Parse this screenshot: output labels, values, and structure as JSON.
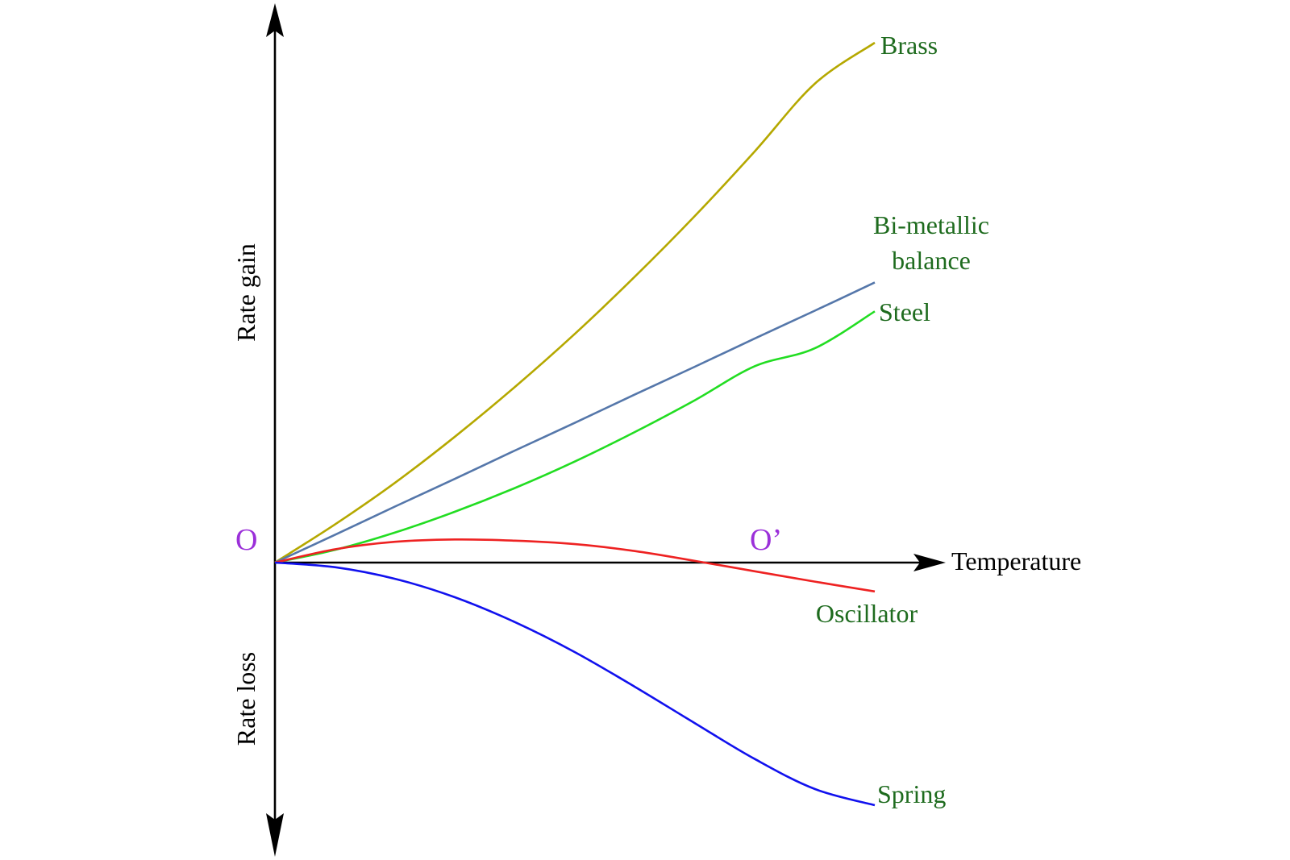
{
  "chart_data": {
    "type": "line",
    "title": "",
    "xlabel": "Temperature",
    "ylabel_positive": "Rate gain",
    "ylabel_negative": "Rate loss",
    "xlim": [
      0,
      10
    ],
    "ylim": [
      -4.6,
      9.4
    ],
    "grid": false,
    "legend": "none",
    "origin_label": "O",
    "crossing_label": "O’",
    "point_label_color": "#9b30d9",
    "series_label_color": "#1e6b1e",
    "series": [
      {
        "name": "Brass",
        "label_lines": [
          "Brass"
        ],
        "color": "#b5a800",
        "x": [
          0,
          1,
          2,
          3,
          4,
          5,
          6,
          7,
          8,
          9,
          10
        ],
        "y": [
          0,
          0.66,
          1.38,
          2.18,
          3.04,
          3.96,
          4.95,
          6.0,
          7.12,
          8.29,
          9.0
        ]
      },
      {
        "name": "Bi-metallic balance",
        "label_lines": [
          "Bi-metallic",
          "balance"
        ],
        "color": "#5577aa",
        "x": [
          0,
          1,
          2,
          3,
          4,
          5,
          6,
          7,
          8,
          9,
          10
        ],
        "y": [
          0,
          0.48,
          0.97,
          1.45,
          1.94,
          2.42,
          2.91,
          3.39,
          3.88,
          4.36,
          4.85
        ]
      },
      {
        "name": "Steel",
        "label_lines": [
          "Steel"
        ],
        "color": "#22dd22",
        "x": [
          0,
          1,
          2,
          3,
          4,
          5,
          6,
          7,
          8,
          9,
          10
        ],
        "y": [
          0,
          0.22,
          0.52,
          0.88,
          1.29,
          1.75,
          2.26,
          2.81,
          3.4,
          3.71,
          4.35
        ]
      },
      {
        "name": "Oscillator",
        "label_lines": [
          "Oscillator"
        ],
        "color": "#ee2222",
        "x": [
          0,
          1,
          2,
          3,
          4,
          5,
          6,
          7,
          8,
          9,
          10
        ],
        "y": [
          0,
          0.23,
          0.36,
          0.4,
          0.38,
          0.32,
          0.2,
          0.03,
          -0.15,
          -0.33,
          -0.5
        ]
      },
      {
        "name": "Spring",
        "label_lines": [
          "Spring"
        ],
        "color": "#1111ee",
        "x": [
          0,
          1,
          2,
          3,
          4,
          5,
          6,
          7,
          8,
          9,
          10
        ],
        "y": [
          0,
          -0.08,
          -0.28,
          -0.6,
          -1.03,
          -1.55,
          -2.15,
          -2.78,
          -3.4,
          -3.92,
          -4.2
        ]
      }
    ]
  }
}
